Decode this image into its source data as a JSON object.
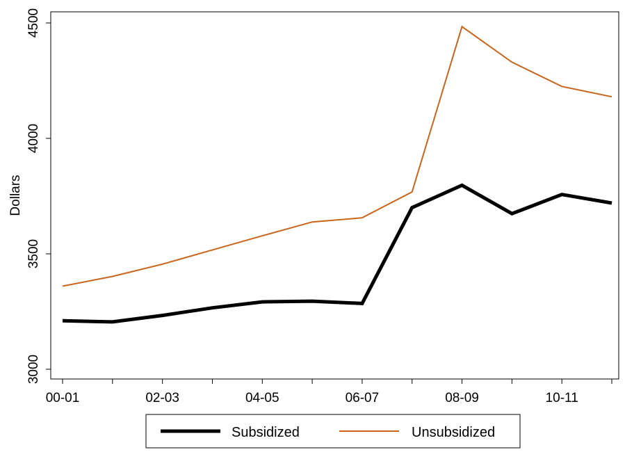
{
  "chart_data": {
    "type": "line",
    "title": "",
    "xlabel": "",
    "ylabel": "Dollars",
    "x_ticks": [
      "00-01",
      "02-03",
      "04-05",
      "06-07",
      "08-09",
      "10-11"
    ],
    "y_ticks": [
      "3000",
      "3500",
      "4000",
      "4500"
    ],
    "ylim": [
      2980,
      4550
    ],
    "x_years": [
      2000,
      2001,
      2002,
      2003,
      2004,
      2005,
      2006,
      2007,
      2008,
      2009,
      2010,
      2011
    ],
    "series": [
      {
        "name": "Subsidized",
        "color": "#000000",
        "values": [
          3210,
          3205,
          3233,
          3266,
          3292,
          3295,
          3285,
          3700,
          3797,
          3674,
          3757,
          3720
        ]
      },
      {
        "name": "Unsubsidized",
        "color": "#c8651b",
        "values": [
          3360,
          3402,
          3455,
          3517,
          3578,
          3638,
          3656,
          3768,
          4484,
          4330,
          4225,
          4180
        ]
      }
    ],
    "grid": false,
    "legend_position": "bottom"
  }
}
